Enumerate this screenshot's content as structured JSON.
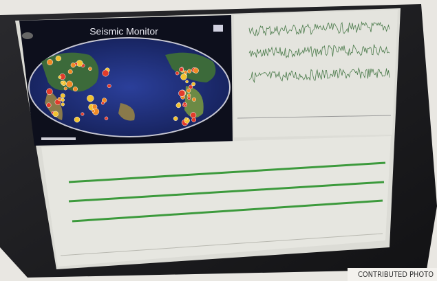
{
  "screen": {
    "title": "Seismic Monitor"
  },
  "credit": "CONTRIBUTED PHOTO"
}
